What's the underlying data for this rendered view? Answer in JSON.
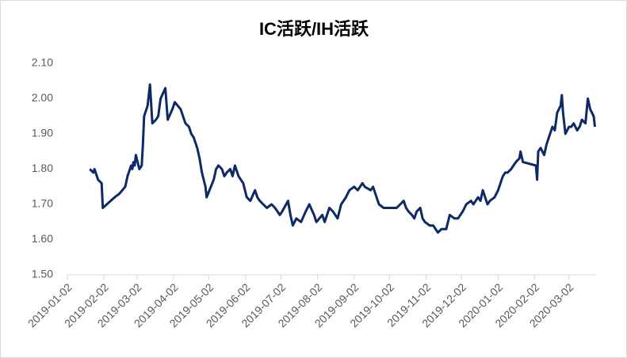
{
  "chart_data": {
    "type": "line",
    "title": "IC活跃/IH活跃",
    "color": "#0d2a66",
    "x": [
      "2019-01-21",
      "2019-01-24",
      "2019-01-25",
      "2019-01-28",
      "2019-01-31",
      "2019-02-01",
      "2019-02-11",
      "2019-02-15",
      "2019-02-20",
      "2019-02-22",
      "2019-02-25",
      "2019-02-26",
      "2019-02-27",
      "2019-02-28",
      "2019-03-01",
      "2019-03-04",
      "2019-03-06",
      "2019-03-07",
      "2019-03-08",
      "2019-03-11",
      "2019-03-13",
      "2019-03-15",
      "2019-03-18",
      "2019-03-20",
      "2019-03-22",
      "2019-03-26",
      "2019-03-28",
      "2019-04-01",
      "2019-04-03",
      "2019-04-08",
      "2019-04-10",
      "2019-04-12",
      "2019-04-15",
      "2019-04-17",
      "2019-04-19",
      "2019-04-22",
      "2019-04-24",
      "2019-04-26",
      "2019-04-29",
      "2019-04-30",
      "2019-05-06",
      "2019-05-08",
      "2019-05-10",
      "2019-05-13",
      "2019-05-15",
      "2019-05-17",
      "2019-05-20",
      "2019-05-22",
      "2019-05-24",
      "2019-05-27",
      "2019-05-31",
      "2019-06-03",
      "2019-06-06",
      "2019-06-10",
      "2019-06-12",
      "2019-06-14",
      "2019-06-17",
      "2019-06-20",
      "2019-06-24",
      "2019-06-27",
      "2019-07-01",
      "2019-07-03",
      "2019-07-08",
      "2019-07-10",
      "2019-07-12",
      "2019-07-15",
      "2019-07-19",
      "2019-07-23",
      "2019-07-26",
      "2019-07-30",
      "2019-08-01",
      "2019-08-06",
      "2019-08-08",
      "2019-08-12",
      "2019-08-15",
      "2019-08-19",
      "2019-08-22",
      "2019-08-26",
      "2019-08-29",
      "2019-09-02",
      "2019-09-05",
      "2019-09-09",
      "2019-09-11",
      "2019-09-16",
      "2019-09-18",
      "2019-09-20",
      "2019-09-23",
      "2019-09-27",
      "2019-10-08",
      "2019-10-11",
      "2019-10-14",
      "2019-10-16",
      "2019-10-18",
      "2019-10-21",
      "2019-10-23",
      "2019-10-25",
      "2019-10-28",
      "2019-10-30",
      "2019-11-01",
      "2019-11-05",
      "2019-11-08",
      "2019-11-12",
      "2019-11-15",
      "2019-11-19",
      "2019-11-22",
      "2019-11-26",
      "2019-11-29",
      "2019-12-03",
      "2019-12-06",
      "2019-12-10",
      "2019-12-12",
      "2019-12-16",
      "2019-12-18",
      "2019-12-20",
      "2019-12-24",
      "2019-12-26",
      "2019-12-30",
      "2020-01-02",
      "2020-01-06",
      "2020-01-08",
      "2020-01-10",
      "2020-01-13",
      "2020-01-15",
      "2020-01-17",
      "2020-01-20",
      "2020-01-21",
      "2020-01-23",
      "2020-02-03",
      "2020-02-04",
      "2020-02-05",
      "2020-02-07",
      "2020-02-10",
      "2020-02-12",
      "2020-02-14",
      "2020-02-17",
      "2020-02-19",
      "2020-02-21",
      "2020-02-24",
      "2020-02-25",
      "2020-02-26",
      "2020-02-28",
      "2020-03-02",
      "2020-03-04",
      "2020-03-06",
      "2020-03-09",
      "2020-03-11",
      "2020-03-13",
      "2020-03-16",
      "2020-03-18",
      "2020-03-20",
      "2020-03-23",
      "2020-03-24"
    ],
    "values": [
      1.8,
      1.79,
      1.8,
      1.77,
      1.76,
      1.69,
      1.72,
      1.73,
      1.75,
      1.78,
      1.81,
      1.8,
      1.82,
      1.81,
      1.84,
      1.8,
      1.81,
      1.87,
      1.95,
      1.98,
      2.04,
      1.93,
      1.94,
      1.95,
      2.0,
      2.03,
      1.94,
      1.97,
      1.99,
      1.97,
      1.95,
      1.93,
      1.92,
      1.9,
      1.89,
      1.86,
      1.83,
      1.79,
      1.75,
      1.72,
      1.77,
      1.8,
      1.81,
      1.8,
      1.78,
      1.79,
      1.8,
      1.78,
      1.81,
      1.78,
      1.76,
      1.72,
      1.71,
      1.74,
      1.72,
      1.71,
      1.7,
      1.69,
      1.7,
      1.69,
      1.67,
      1.68,
      1.71,
      1.67,
      1.64,
      1.66,
      1.65,
      1.68,
      1.7,
      1.67,
      1.65,
      1.67,
      1.65,
      1.69,
      1.68,
      1.66,
      1.7,
      1.72,
      1.74,
      1.75,
      1.74,
      1.76,
      1.75,
      1.74,
      1.75,
      1.73,
      1.7,
      1.69,
      1.69,
      1.7,
      1.71,
      1.69,
      1.68,
      1.67,
      1.66,
      1.68,
      1.69,
      1.66,
      1.65,
      1.64,
      1.64,
      1.62,
      1.63,
      1.63,
      1.67,
      1.66,
      1.66,
      1.68,
      1.7,
      1.71,
      1.7,
      1.72,
      1.71,
      1.74,
      1.7,
      1.71,
      1.72,
      1.74,
      1.78,
      1.79,
      1.79,
      1.8,
      1.81,
      1.82,
      1.83,
      1.85,
      1.82,
      1.81,
      1.77,
      1.85,
      1.86,
      1.84,
      1.87,
      1.89,
      1.92,
      1.91,
      1.96,
      1.98,
      2.01,
      1.96,
      1.9,
      1.92,
      1.92,
      1.93,
      1.91,
      1.92,
      1.94,
      1.93,
      2.0,
      1.97,
      1.95,
      1.92
    ],
    "xlim": [
      "2019-01-02",
      "2020-03-25"
    ],
    "xticks": [
      "2019-01-02",
      "2019-02-02",
      "2019-03-02",
      "2019-04-02",
      "2019-05-02",
      "2019-06-02",
      "2019-07-02",
      "2019-08-02",
      "2019-09-02",
      "2019-10-02",
      "2019-11-02",
      "2019-12-02",
      "2020-01-02",
      "2020-02-02",
      "2020-03-02"
    ],
    "ylim": [
      1.5,
      2.1
    ],
    "yticks": [
      {
        "value": 1.5,
        "label": "1.50"
      },
      {
        "value": 1.6,
        "label": "1.60"
      },
      {
        "value": 1.7,
        "label": "1.70"
      },
      {
        "value": 1.8,
        "label": "1.80"
      },
      {
        "value": 1.9,
        "label": "1.90"
      },
      {
        "value": 2.0,
        "label": "2.00"
      },
      {
        "value": 2.1,
        "label": "2.10"
      }
    ],
    "grid": false
  }
}
